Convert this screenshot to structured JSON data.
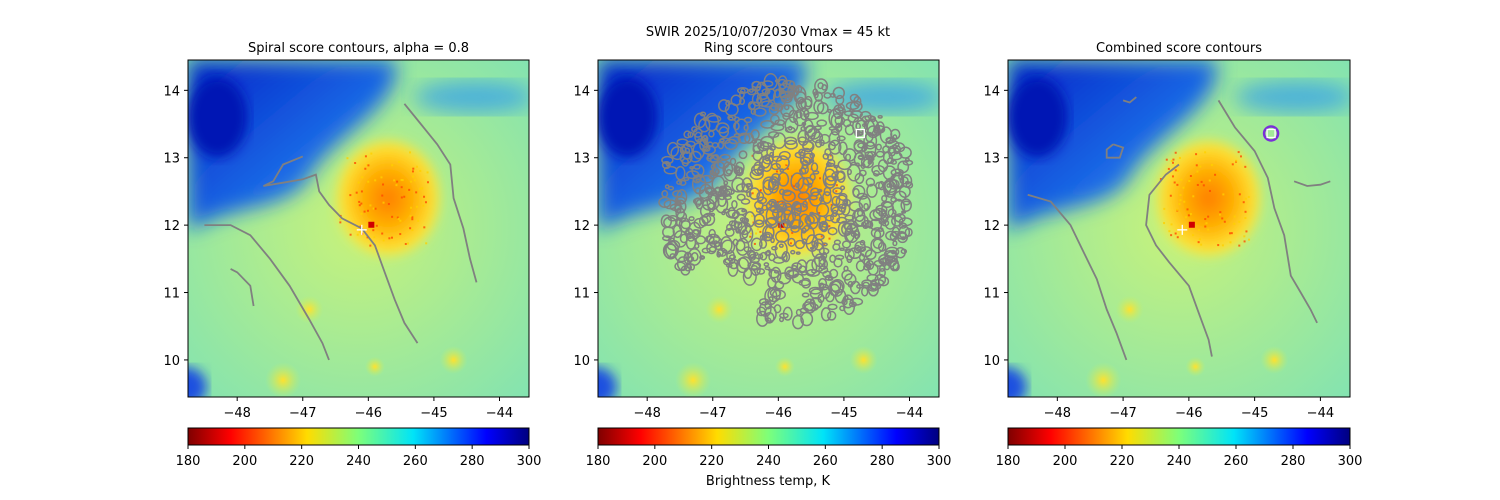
{
  "suptitle": {
    "line1": "SWIR  2025/10/07/2030    Vmax = 45 kt"
  },
  "colorbar_label": "Brightness temp, K",
  "chart_data": [
    {
      "type": "heatmap",
      "title": "Spiral score contours, alpha =  0.8",
      "xlim": [
        -48.75,
        -43.55
      ],
      "ylim": [
        9.45,
        14.45
      ],
      "x_ticks": [
        -48,
        -47,
        -46,
        -45,
        -44
      ],
      "y_ticks": [
        10,
        11,
        12,
        13,
        14
      ],
      "x_tick_labels": [
        "−48",
        "−47",
        "−46",
        "−45",
        "−44"
      ],
      "y_tick_labels": [
        "10",
        "11",
        "12",
        "13",
        "14"
      ],
      "colorbar": {
        "vmin": 180,
        "vmax": 300,
        "ticks": [
          180,
          200,
          220,
          240,
          260,
          280,
          300
        ],
        "cmap": "jet_r"
      },
      "center_marker": {
        "x": -46.1,
        "y": 11.93,
        "symbol": "+"
      },
      "contours": [
        [
          [
            -47.0,
            13.02
          ],
          [
            -47.3,
            12.9
          ],
          [
            -47.45,
            12.65
          ],
          [
            -47.6,
            12.58
          ],
          [
            -47.3,
            12.63
          ],
          [
            -47.0,
            12.68
          ],
          [
            -46.8,
            12.75
          ],
          [
            -46.75,
            12.5
          ],
          [
            -46.6,
            12.3
          ],
          [
            -46.4,
            12.1
          ],
          [
            -46.1,
            11.95
          ],
          [
            -45.9,
            11.7
          ],
          [
            -45.75,
            11.3
          ],
          [
            -45.6,
            10.9
          ],
          [
            -45.45,
            10.55
          ],
          [
            -45.25,
            10.25
          ]
        ],
        [
          [
            -48.5,
            12.0
          ],
          [
            -48.1,
            12.0
          ],
          [
            -47.8,
            11.85
          ],
          [
            -47.5,
            11.5
          ],
          [
            -47.2,
            11.1
          ],
          [
            -46.9,
            10.6
          ],
          [
            -46.7,
            10.25
          ],
          [
            -46.6,
            10.0
          ]
        ],
        [
          [
            -48.1,
            11.35
          ],
          [
            -48.0,
            11.3
          ],
          [
            -47.8,
            11.1
          ],
          [
            -47.75,
            10.8
          ]
        ],
        [
          [
            -45.45,
            13.8
          ],
          [
            -45.2,
            13.5
          ],
          [
            -44.95,
            13.2
          ],
          [
            -44.75,
            12.9
          ],
          [
            -44.7,
            12.4
          ],
          [
            -44.55,
            11.95
          ],
          [
            -44.45,
            11.5
          ],
          [
            -44.35,
            11.15
          ]
        ]
      ]
    },
    {
      "type": "heatmap",
      "title": "Ring score contours",
      "xlim": [
        -48.75,
        -43.55
      ],
      "ylim": [
        9.45,
        14.45
      ],
      "x_ticks": [
        -48,
        -47,
        -46,
        -45,
        -44
      ],
      "y_ticks": [
        10,
        11,
        12,
        13,
        14
      ],
      "x_tick_labels": [
        "−48",
        "−47",
        "−46",
        "−45",
        "−44"
      ],
      "y_tick_labels": [
        "10",
        "11",
        "12",
        "13",
        "14"
      ],
      "colorbar": {
        "vmin": 180,
        "vmax": 300,
        "ticks": [
          180,
          200,
          220,
          240,
          260,
          280,
          300
        ],
        "cmap": "jet_r"
      },
      "square_marker": {
        "x": -44.75,
        "y": 13.36
      }
    },
    {
      "type": "heatmap",
      "title": "Combined score contours",
      "xlim": [
        -48.75,
        -43.55
      ],
      "ylim": [
        9.45,
        14.45
      ],
      "x_ticks": [
        -48,
        -47,
        -46,
        -45,
        -44
      ],
      "y_ticks": [
        10,
        11,
        12,
        13,
        14
      ],
      "x_tick_labels": [
        "−48",
        "−47",
        "−46",
        "−45",
        "−44"
      ],
      "y_tick_labels": [
        "10",
        "11",
        "12",
        "13",
        "14"
      ],
      "colorbar": {
        "vmin": 180,
        "vmax": 300,
        "ticks": [
          180,
          200,
          220,
          240,
          260,
          280,
          300
        ],
        "cmap": "jet_r"
      },
      "center_marker": {
        "x": -46.1,
        "y": 11.93,
        "symbol": "+"
      },
      "square_marker": {
        "x": -44.75,
        "y": 13.36
      },
      "contours": [
        [
          [
            -46.15,
            12.9
          ],
          [
            -46.35,
            12.75
          ],
          [
            -46.6,
            12.45
          ],
          [
            -46.65,
            12.0
          ],
          [
            -46.5,
            11.7
          ],
          [
            -46.3,
            11.45
          ],
          [
            -46.0,
            11.1
          ],
          [
            -45.85,
            10.7
          ],
          [
            -45.7,
            10.3
          ],
          [
            -45.65,
            10.05
          ]
        ],
        [
          [
            -48.45,
            12.45
          ],
          [
            -48.1,
            12.35
          ],
          [
            -47.8,
            12.0
          ],
          [
            -47.6,
            11.6
          ],
          [
            -47.4,
            11.2
          ],
          [
            -47.25,
            10.75
          ],
          [
            -47.1,
            10.4
          ],
          [
            -46.95,
            10.0
          ]
        ],
        [
          [
            -45.55,
            13.85
          ],
          [
            -45.3,
            13.45
          ],
          [
            -45.0,
            13.1
          ],
          [
            -44.8,
            12.7
          ],
          [
            -44.7,
            12.25
          ],
          [
            -44.55,
            11.85
          ],
          [
            -44.45,
            11.25
          ],
          [
            -44.3,
            11.0
          ],
          [
            -44.15,
            10.75
          ],
          [
            -44.05,
            10.55
          ]
        ],
        [
          [
            -47.15,
            13.2
          ],
          [
            -47.0,
            13.15
          ],
          [
            -47.05,
            13.0
          ],
          [
            -47.25,
            13.0
          ],
          [
            -47.25,
            13.12
          ],
          [
            -47.15,
            13.2
          ]
        ],
        [
          [
            -47.0,
            13.85
          ],
          [
            -46.9,
            13.82
          ],
          [
            -46.8,
            13.9
          ]
        ],
        [
          [
            -44.4,
            12.65
          ],
          [
            -44.2,
            12.58
          ],
          [
            -44.0,
            12.6
          ],
          [
            -43.85,
            12.65
          ]
        ]
      ]
    }
  ]
}
